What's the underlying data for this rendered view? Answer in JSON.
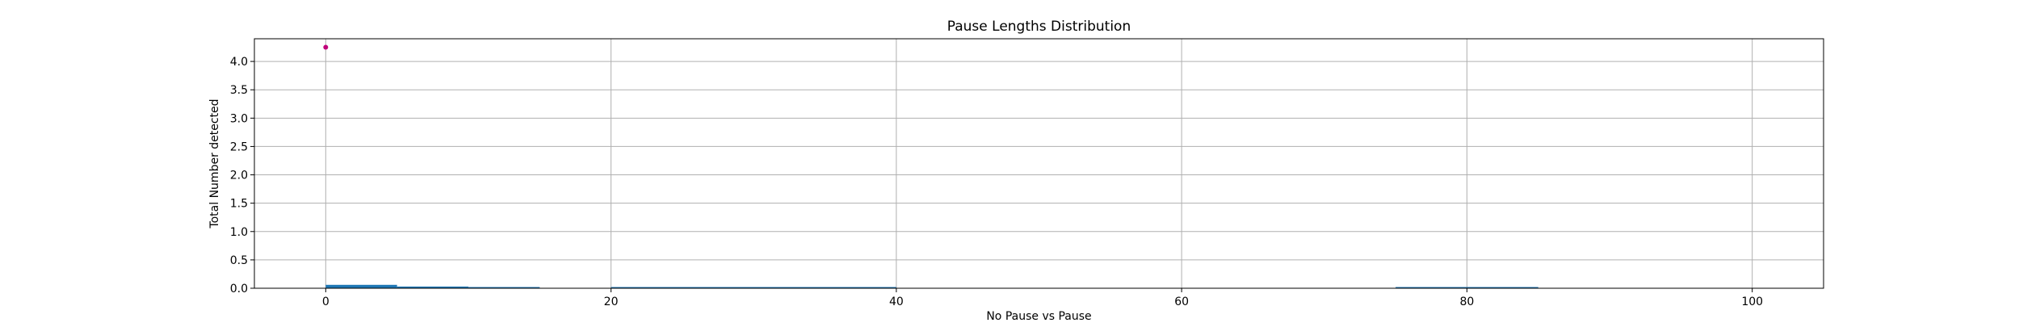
{
  "chart_data": {
    "type": "bar",
    "title": "Pause Lengths Distribution",
    "xlabel": "No Pause vs Pause",
    "ylabel": "Total Number detected",
    "xlim": [
      -5,
      105
    ],
    "ylim": [
      0,
      4.4
    ],
    "grid": true,
    "x_ticks": [
      0,
      20,
      40,
      60,
      80,
      100
    ],
    "x_tick_labels": [
      "0",
      "20",
      "40",
      "60",
      "80",
      "100"
    ],
    "y_ticks": [
      0.0,
      0.5,
      1.0,
      1.5,
      2.0,
      2.5,
      3.0,
      3.5,
      4.0
    ],
    "y_tick_labels": [
      "0.0",
      "0.5",
      "1.0",
      "1.5",
      "2.0",
      "2.5",
      "3.0",
      "3.5",
      "4.0"
    ],
    "bars": [
      {
        "x0": 0,
        "x1": 5,
        "value": 0.06
      },
      {
        "x0": 5,
        "x1": 10,
        "value": 0.03
      },
      {
        "x0": 10,
        "x1": 15,
        "value": 0.015
      },
      {
        "x0": 20,
        "x1": 40,
        "value": 0.01
      },
      {
        "x0": 75,
        "x1": 85,
        "value": 0.01
      }
    ],
    "points": [
      {
        "x": 0,
        "y": 4.25
      }
    ],
    "bar_color": "#1f77b4",
    "point_color": "#c0007a",
    "grid_color": "#b0b0b0"
  }
}
